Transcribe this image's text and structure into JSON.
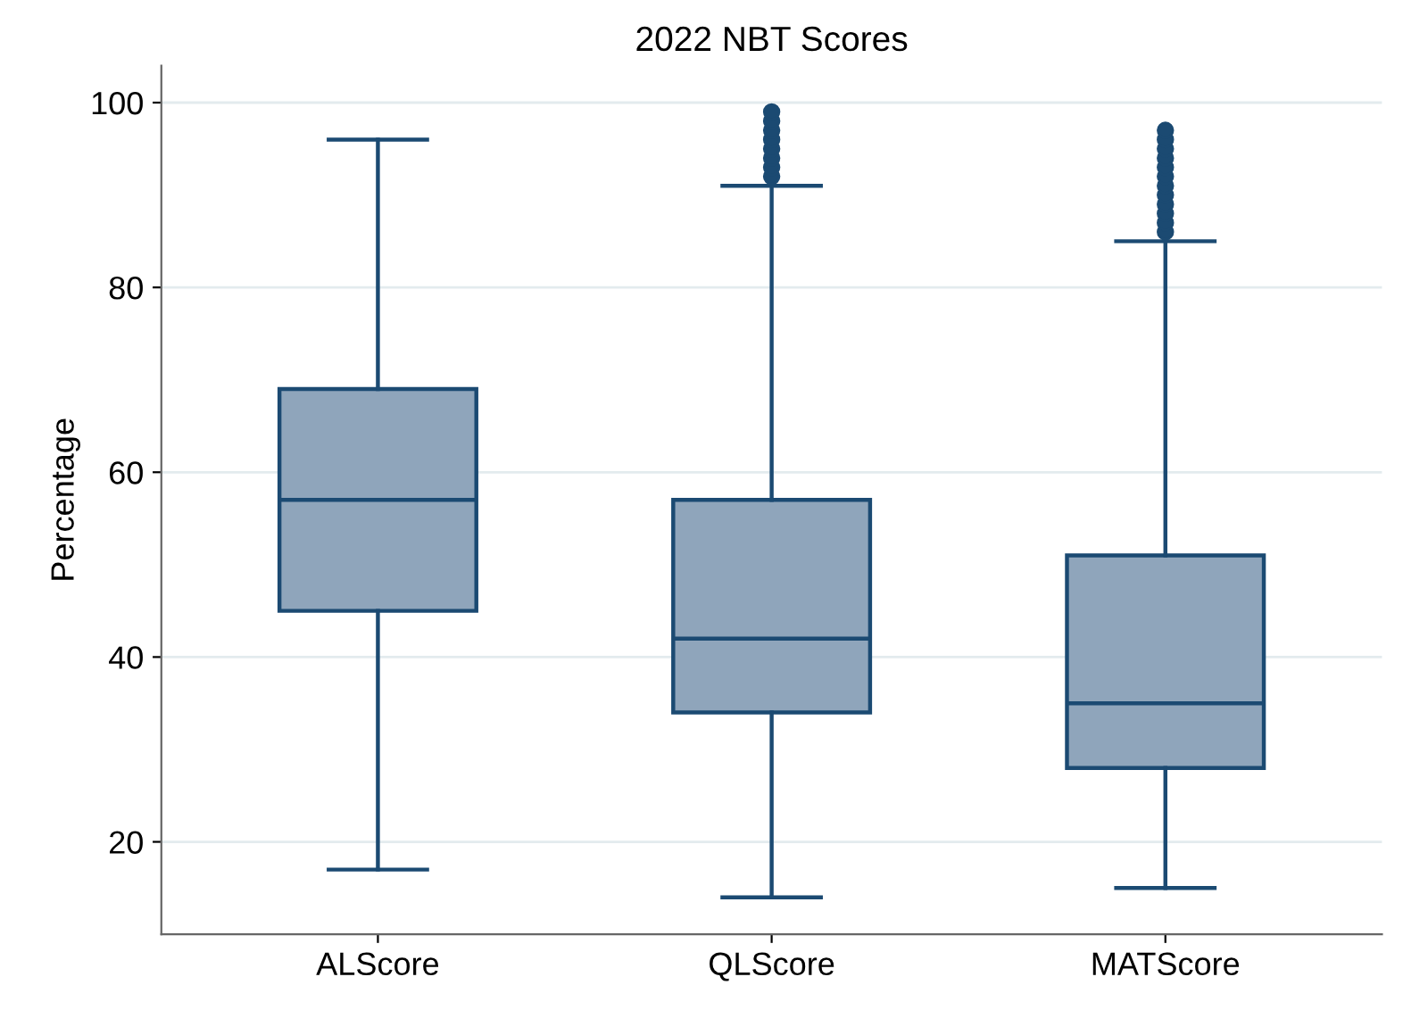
{
  "chart_data": {
    "type": "box",
    "title": "2022 NBT Scores",
    "ylabel": "Percentage",
    "categories": [
      "ALScore",
      "QLScore",
      "MATScore"
    ],
    "series": [
      {
        "color": "#8fa5bb",
        "boxes": [
          {
            "low": 17,
            "q1": 45,
            "median": 57,
            "q3": 69,
            "high": 96
          },
          {
            "low": 14,
            "q1": 34,
            "median": 42,
            "q3": 57,
            "high": 91,
            "outliers": [
              92,
              93,
              94,
              95,
              96,
              97,
              98,
              99
            ]
          },
          {
            "low": 15,
            "q1": 28,
            "median": 35,
            "q3": 51,
            "high": 85,
            "outliers": [
              86,
              87,
              88,
              89,
              90,
              91,
              92,
              93,
              94,
              95,
              96,
              97
            ]
          }
        ]
      }
    ],
    "ylim": [
      10,
      104
    ],
    "yticks": [
      20,
      40,
      60,
      80,
      100
    ],
    "grid": "y",
    "legend": false
  }
}
